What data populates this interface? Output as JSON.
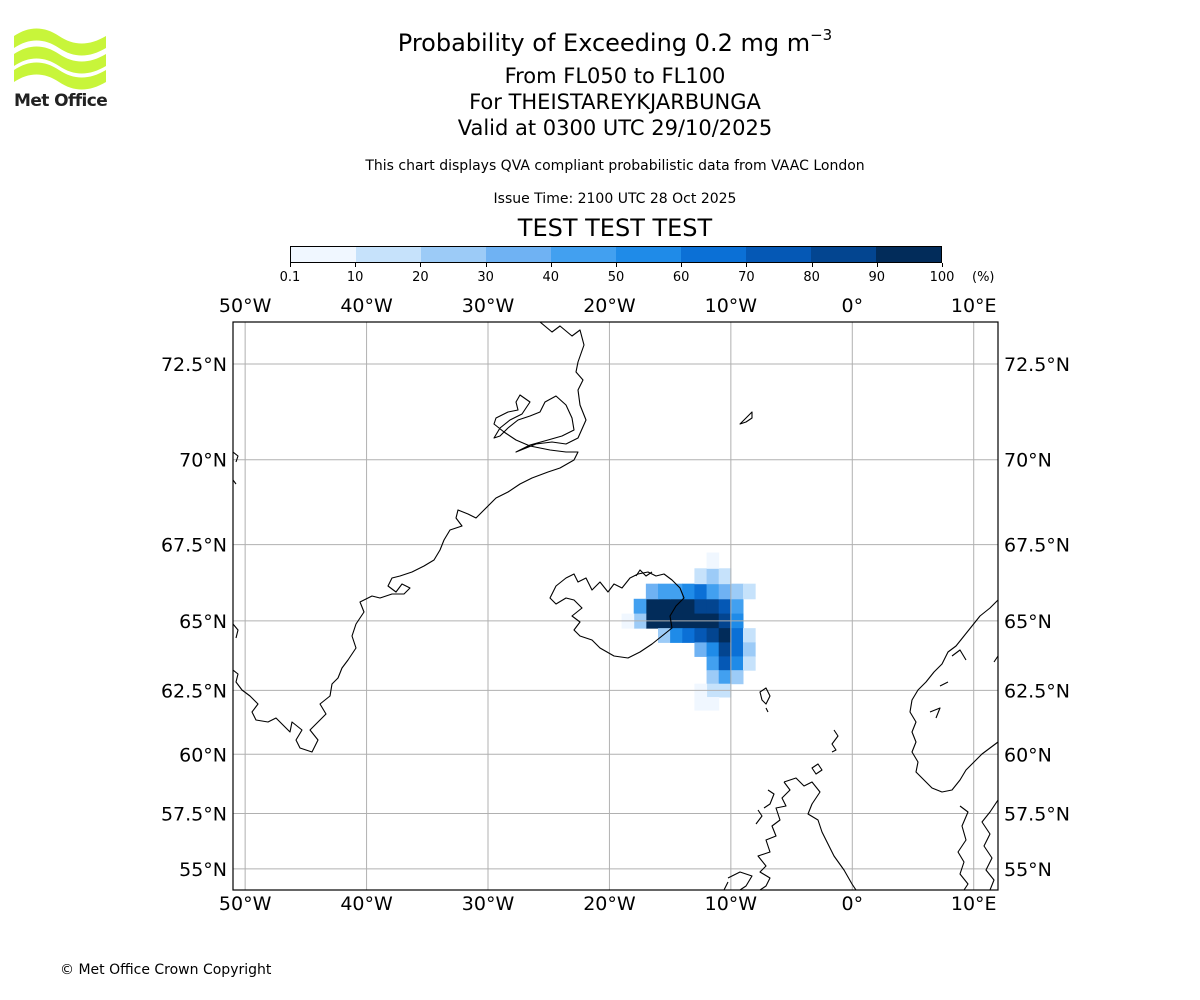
{
  "header": {
    "title": "Probability of Exceeding 0.2 mg m",
    "title_sup": "−3",
    "level_range": "From FL050 to FL100",
    "volcano": "For THEISTAREYKJARBUNGA",
    "valid_time": "Valid at 0300 UTC 29/10/2025",
    "disclaimer": "This chart displays QVA compliant probabilistic data from VAAC London",
    "issue_time": "Issue Time: 2100 UTC 28 Oct 2025",
    "test_banner": "TEST TEST TEST"
  },
  "logo": {
    "text": "Met Office",
    "color": "#c8f53a"
  },
  "colorbar": {
    "labels": [
      "0.1",
      "10",
      "20",
      "30",
      "40",
      "50",
      "60",
      "70",
      "80",
      "90",
      "100"
    ],
    "unit": "(%)",
    "colors": [
      "#f0f7ff",
      "#c6e2fb",
      "#9ccbf7",
      "#6fb2f3",
      "#42a0f0",
      "#1f8be8",
      "#0b70d6",
      "#0558b5",
      "#034590",
      "#022c5a"
    ]
  },
  "map": {
    "lon_range": [
      -51,
      12
    ],
    "lat_range": [
      54,
      73.5
    ],
    "lon_labels": [
      {
        "lon": -50,
        "label": "50°W"
      },
      {
        "lon": -40,
        "label": "40°W"
      },
      {
        "lon": -30,
        "label": "30°W"
      },
      {
        "lon": -20,
        "label": "20°W"
      },
      {
        "lon": -10,
        "label": "10°W"
      },
      {
        "lon": 0,
        "label": "0°"
      },
      {
        "lon": 10,
        "label": "10°E"
      }
    ],
    "lat_labels": [
      {
        "lat": 72.5,
        "label": "72.5°N"
      },
      {
        "lat": 70,
        "label": "70°N"
      },
      {
        "lat": 67.5,
        "label": "67.5°N"
      },
      {
        "lat": 65,
        "label": "65°N"
      },
      {
        "lat": 62.5,
        "label": "62.5°N"
      },
      {
        "lat": 60,
        "label": "60°N"
      },
      {
        "lat": 57.5,
        "label": "57.5°N"
      },
      {
        "lat": 55,
        "label": "55°N"
      }
    ],
    "plume_cells": [
      {
        "lon": -16.5,
        "lat": 65.5,
        "p": 95
      },
      {
        "lon": -15.5,
        "lat": 65.5,
        "p": 95
      },
      {
        "lon": -14.5,
        "lat": 65.5,
        "p": 95
      },
      {
        "lon": -13.5,
        "lat": 65.5,
        "p": 92
      },
      {
        "lon": -12.5,
        "lat": 65.5,
        "p": 88
      },
      {
        "lon": -11.5,
        "lat": 65.5,
        "p": 85
      },
      {
        "lon": -10.5,
        "lat": 65.5,
        "p": 70
      },
      {
        "lon": -9.5,
        "lat": 65.5,
        "p": 45
      },
      {
        "lon": -16.5,
        "lat": 65.0,
        "p": 90
      },
      {
        "lon": -15.5,
        "lat": 65.0,
        "p": 95
      },
      {
        "lon": -14.5,
        "lat": 65.0,
        "p": 95
      },
      {
        "lon": -13.5,
        "lat": 65.0,
        "p": 95
      },
      {
        "lon": -12.5,
        "lat": 65.0,
        "p": 92
      },
      {
        "lon": -11.5,
        "lat": 65.0,
        "p": 90
      },
      {
        "lon": -10.5,
        "lat": 65.0,
        "p": 80
      },
      {
        "lon": -9.5,
        "lat": 65.0,
        "p": 55
      },
      {
        "lon": -17.5,
        "lat": 65.5,
        "p": 40
      },
      {
        "lon": -17.5,
        "lat": 65.0,
        "p": 20
      },
      {
        "lon": -18.5,
        "lat": 65.0,
        "p": 5
      },
      {
        "lon": -16.5,
        "lat": 66.0,
        "p": 30
      },
      {
        "lon": -15.5,
        "lat": 66.0,
        "p": 45
      },
      {
        "lon": -14.5,
        "lat": 66.0,
        "p": 40
      },
      {
        "lon": -13.5,
        "lat": 66.0,
        "p": 50
      },
      {
        "lon": -12.5,
        "lat": 66.0,
        "p": 60
      },
      {
        "lon": -11.5,
        "lat": 66.0,
        "p": 45
      },
      {
        "lon": -10.5,
        "lat": 66.0,
        "p": 35
      },
      {
        "lon": -9.5,
        "lat": 66.0,
        "p": 20
      },
      {
        "lon": -8.5,
        "lat": 66.0,
        "p": 10
      },
      {
        "lon": -12.5,
        "lat": 66.5,
        "p": 15
      },
      {
        "lon": -11.5,
        "lat": 66.5,
        "p": 20
      },
      {
        "lon": -10.5,
        "lat": 66.5,
        "p": 10
      },
      {
        "lon": -11.5,
        "lat": 67.0,
        "p": 5
      },
      {
        "lon": -15.5,
        "lat": 64.5,
        "p": 20
      },
      {
        "lon": -14.5,
        "lat": 64.5,
        "p": 50
      },
      {
        "lon": -13.5,
        "lat": 64.5,
        "p": 60
      },
      {
        "lon": -12.5,
        "lat": 64.5,
        "p": 70
      },
      {
        "lon": -11.5,
        "lat": 64.5,
        "p": 85
      },
      {
        "lon": -10.5,
        "lat": 64.5,
        "p": 90
      },
      {
        "lon": -9.5,
        "lat": 64.5,
        "p": 60
      },
      {
        "lon": -8.5,
        "lat": 64.5,
        "p": 15
      },
      {
        "lon": -12.5,
        "lat": 64.0,
        "p": 35
      },
      {
        "lon": -11.5,
        "lat": 64.0,
        "p": 55
      },
      {
        "lon": -10.5,
        "lat": 64.0,
        "p": 85
      },
      {
        "lon": -9.5,
        "lat": 64.0,
        "p": 65
      },
      {
        "lon": -8.5,
        "lat": 64.0,
        "p": 20
      },
      {
        "lon": -11.5,
        "lat": 63.5,
        "p": 40
      },
      {
        "lon": -10.5,
        "lat": 63.5,
        "p": 75
      },
      {
        "lon": -9.5,
        "lat": 63.5,
        "p": 50
      },
      {
        "lon": -8.5,
        "lat": 63.5,
        "p": 15
      },
      {
        "lon": -11.5,
        "lat": 63.0,
        "p": 25
      },
      {
        "lon": -10.5,
        "lat": 63.0,
        "p": 40
      },
      {
        "lon": -9.5,
        "lat": 63.0,
        "p": 25
      },
      {
        "lon": -11.5,
        "lat": 62.5,
        "p": 10
      },
      {
        "lon": -10.5,
        "lat": 62.5,
        "p": 15
      },
      {
        "lon": -12.5,
        "lat": 62.5,
        "p": 5
      },
      {
        "lon": -12.5,
        "lat": 62.0,
        "p": 5
      },
      {
        "lon": -11.5,
        "lat": 62.0,
        "p": 5
      }
    ]
  },
  "footer": {
    "copyright": "© Met Office Crown Copyright"
  }
}
